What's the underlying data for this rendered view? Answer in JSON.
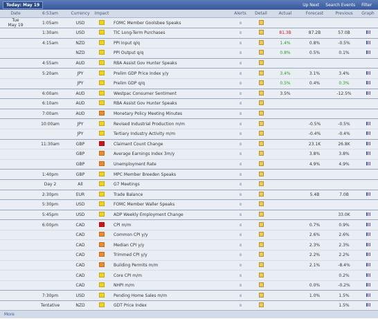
{
  "toolbar": {
    "today": "Today: May 19",
    "up_next": "Up Next",
    "search": "Search Events",
    "filter": "Filter"
  },
  "columns": {
    "date": "Date",
    "time": "6:53am",
    "currency": "Currency",
    "impact": "Impact",
    "alerts": "Alerts",
    "detail": "Detail",
    "actual": "Actual",
    "forecast": "Forecast",
    "previous": "Previous",
    "graph": "Graph"
  },
  "rows": [
    {
      "day": "Tue",
      "date": "May 19",
      "time": "1:05am",
      "currency": "USD",
      "impact": "#f2d31b",
      "event": "FOMC Member Goolsbee Speaks"
    },
    {
      "time": "1:30am",
      "currency": "USD",
      "impact": "#f2d31b",
      "event": "TIC Long-Term Purchases",
      "actual": "81.3B",
      "actual_color": "#d0121b",
      "forecast": "87.2B",
      "previous": "57.0B"
    },
    {
      "time": "4:15am",
      "currency": "NZD",
      "impact": "#f2d31b",
      "event": "PPI Input q/q",
      "actual": "1.4%",
      "actual_color": "#2a9a2a",
      "forecast": "0.8%",
      "previous": "-0.5%"
    },
    {
      "currency": "NZD",
      "impact": "#f2d31b",
      "event": "PPI Output q/q",
      "actual": "0.8%",
      "actual_color": "#2a9a2a",
      "forecast": "0.5%",
      "previous": "0.1%"
    },
    {
      "time": "4:55am",
      "currency": "AUD",
      "impact": "#f2d31b",
      "event": "RBA Assist Gov Hunter Speaks"
    },
    {
      "time": "5:20am",
      "currency": "JPY",
      "impact": "#f2d31b",
      "event": "Prelim GDP Price Index y/y",
      "actual": "3.4%",
      "actual_color": "#2a9a2a",
      "forecast": "3.1%",
      "previous": "3.4%"
    },
    {
      "currency": "JPY",
      "impact": "#f2d31b",
      "event": "Prelim GDP q/q",
      "actual": "0.5%",
      "actual_color": "#2a9a2a",
      "forecast": "0.4%",
      "previous": "0.3%",
      "previous_color": "#2a9a2a"
    },
    {
      "time": "6:00am",
      "currency": "AUD",
      "impact": "#f2d31b",
      "event": "Westpac Consumer Sentiment",
      "actual": "3.5%",
      "previous": "-12.5%"
    },
    {
      "time": "6:10am",
      "currency": "AUD",
      "impact": "#f2d31b",
      "event": "RBA Assist Gov Hunter Speaks"
    },
    {
      "time": "7:00am",
      "currency": "AUD",
      "impact": "#ec8a2c",
      "event": "Monetary Policy Meeting Minutes"
    },
    {
      "time": "10:00am",
      "currency": "JPY",
      "impact": "#f2d31b",
      "event": "Revised Industrial Production m/m",
      "forecast": "-0.5%",
      "previous": "-0.5%"
    },
    {
      "currency": "JPY",
      "impact": "#f2d31b",
      "event": "Tertiary Industry Activity m/m",
      "forecast": "-0.4%",
      "previous": "-0.4%"
    },
    {
      "time": "11:30am",
      "currency": "GBP",
      "impact": "#d0121b",
      "event": "Claimant Count Change",
      "forecast": "23.1K",
      "previous": "26.8K"
    },
    {
      "currency": "GBP",
      "impact": "#ec8a2c",
      "event": "Average Earnings Index 3m/y",
      "forecast": "3.8%",
      "previous": "3.8%"
    },
    {
      "currency": "GBP",
      "impact": "#ec8a2c",
      "event": "Unemployment Rate",
      "forecast": "4.9%",
      "previous": "4.9%"
    },
    {
      "time": "1:40pm",
      "currency": "GBP",
      "impact": "#f2d31b",
      "event": "MPC Member Breeden Speaks"
    },
    {
      "time": "Day 2",
      "currency": "All",
      "impact": "#f2d31b",
      "event": "G7 Meetings"
    },
    {
      "time": "2:30pm",
      "currency": "EUR",
      "impact": "#f2d31b",
      "event": "Trade Balance",
      "forecast": "5.4B",
      "previous": "7.0B"
    },
    {
      "time": "5:30pm",
      "currency": "USD",
      "impact": "#f2d31b",
      "event": "FOMC Member Waller Speaks"
    },
    {
      "time": "5:45pm",
      "currency": "USD",
      "impact": "#f2d31b",
      "event": "ADP Weekly Employment Change",
      "previous": "33.0K"
    },
    {
      "time": "6:00pm",
      "currency": "CAD",
      "impact": "#d0121b",
      "event": "CPI m/m",
      "forecast": "0.7%",
      "previous": "0.9%"
    },
    {
      "currency": "CAD",
      "impact": "#ec8a2c",
      "event": "Common CPI y/y",
      "forecast": "2.6%",
      "previous": "2.6%"
    },
    {
      "currency": "CAD",
      "impact": "#ec8a2c",
      "event": "Median CPI y/y",
      "forecast": "2.3%",
      "previous": "2.3%"
    },
    {
      "currency": "CAD",
      "impact": "#ec8a2c",
      "event": "Trimmed CPI y/y",
      "forecast": "2.2%",
      "previous": "2.2%"
    },
    {
      "currency": "CAD",
      "impact": "#ec8a2c",
      "event": "Building Permits m/m",
      "forecast": "2.1%",
      "previous": "-8.4%"
    },
    {
      "currency": "CAD",
      "impact": "#f2d31b",
      "event": "Core CPI m/m",
      "previous": "0.2%"
    },
    {
      "currency": "CAD",
      "impact": "#f2d31b",
      "event": "NHPI m/m",
      "forecast": "0.0%",
      "previous": "-0.2%"
    },
    {
      "time": "7:30pm",
      "currency": "USD",
      "impact": "#f2d31b",
      "event": "Pending Home Sales m/m",
      "forecast": "1.0%",
      "previous": "1.5%"
    },
    {
      "time": "Tentative",
      "currency": "NZD",
      "impact": "#f2d31b",
      "event": "GDT Price Index",
      "previous": "1.5%"
    }
  ],
  "footer": {
    "more": "More"
  }
}
